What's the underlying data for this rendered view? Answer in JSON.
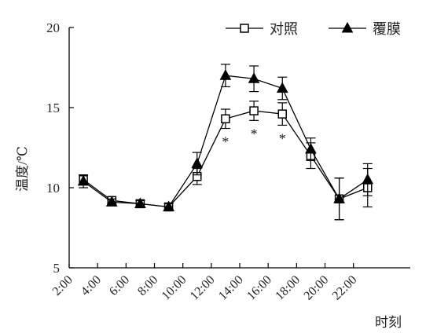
{
  "chart_data": {
    "type": "line",
    "title": "",
    "xlabel": "时刻",
    "ylabel": "温度/℃",
    "ylim": [
      5,
      20
    ],
    "yticks": [
      "5",
      "10",
      "15",
      "20"
    ],
    "categories": [
      "2:00",
      "4:00",
      "6:00",
      "8:00",
      "10:00",
      "12:00",
      "14:00",
      "16:00",
      "18:00",
      "20:00",
      "22:00"
    ],
    "grid": false,
    "legend_position": "top-right",
    "significance_marker": "*",
    "significant_x": [
      "13:00",
      "15:00",
      "17:00"
    ],
    "series": [
      {
        "name": "对照",
        "marker": "open-square",
        "color": "#000000",
        "x": [
          "3:00",
          "5:00",
          "7:00",
          "9:00",
          "11:00",
          "13:00",
          "15:00",
          "17:00",
          "19:00",
          "21:00",
          "23:00"
        ],
        "values": [
          10.5,
          9.2,
          9.0,
          8.8,
          10.7,
          14.3,
          14.8,
          14.6,
          12.0,
          9.3,
          10.0
        ],
        "errors": [
          0.3,
          0.2,
          0.2,
          0.2,
          0.5,
          0.6,
          0.6,
          0.7,
          0.8,
          1.3,
          1.2
        ]
      },
      {
        "name": "覆膜",
        "marker": "filled-triangle",
        "color": "#000000",
        "x": [
          "3:00",
          "5:00",
          "7:00",
          "9:00",
          "11:00",
          "13:00",
          "15:00",
          "17:00",
          "19:00",
          "21:00",
          "23:00"
        ],
        "values": [
          10.4,
          9.1,
          9.0,
          8.8,
          11.5,
          17.0,
          16.8,
          16.2,
          12.4,
          9.3,
          10.5
        ],
        "errors": [
          0.4,
          0.2,
          0.2,
          0.2,
          0.7,
          0.7,
          0.8,
          0.7,
          0.7,
          1.3,
          1.0
        ]
      }
    ]
  }
}
